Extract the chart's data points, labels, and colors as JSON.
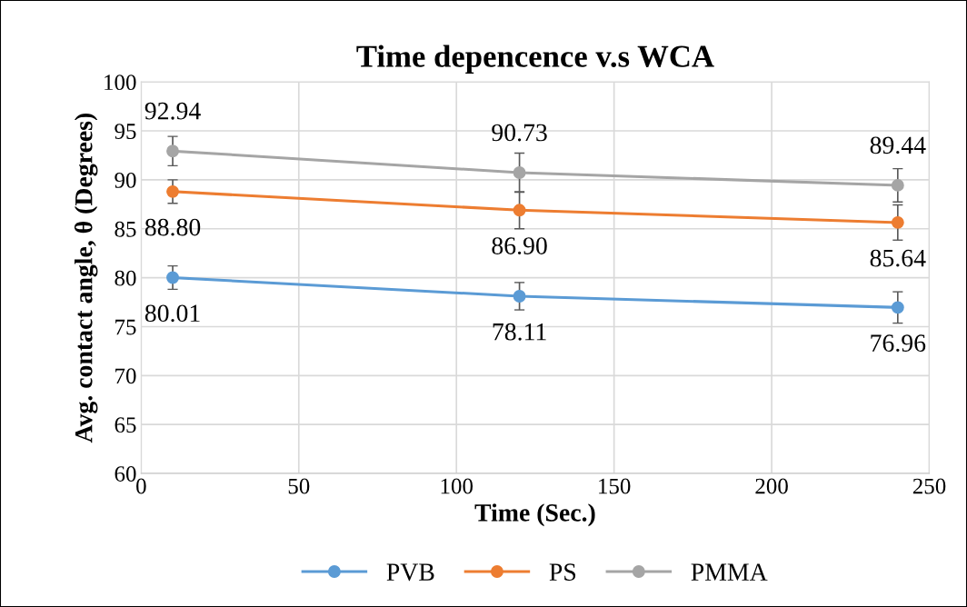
{
  "chart_data": {
    "type": "line",
    "title": "Time depencence v.s WCA",
    "xlabel": "Time (Sec.)",
    "ylabel": "Avg. contact angle, θ (Degrees)",
    "x": [
      10,
      120,
      240
    ],
    "series": [
      {
        "name": "PVB",
        "color": "#5b9bd5",
        "values": [
          80.01,
          78.11,
          76.96
        ],
        "errors": [
          1.2,
          1.4,
          1.6
        ],
        "value_labels": [
          "80.01",
          "78.11",
          "76.96"
        ]
      },
      {
        "name": "PS",
        "color": "#ed7d31",
        "values": [
          88.8,
          86.9,
          85.64
        ],
        "errors": [
          1.2,
          1.9,
          1.8
        ],
        "value_labels": [
          "88.80",
          "86.90",
          "85.64"
        ]
      },
      {
        "name": "PMMA",
        "color": "#a5a5a5",
        "values": [
          92.94,
          90.73,
          89.44
        ],
        "errors": [
          1.5,
          2.0,
          1.7
        ],
        "value_labels": [
          "92.94",
          "90.73",
          "89.44"
        ]
      }
    ],
    "xlim": [
      0,
      250
    ],
    "xticks": [
      0,
      50,
      100,
      150,
      200,
      250
    ],
    "ylim": [
      60,
      100
    ],
    "yticks": [
      60,
      65,
      70,
      75,
      80,
      85,
      90,
      95,
      100
    ],
    "grid": true,
    "legend": "bottom",
    "marker": "circle",
    "line_style": "solid"
  }
}
